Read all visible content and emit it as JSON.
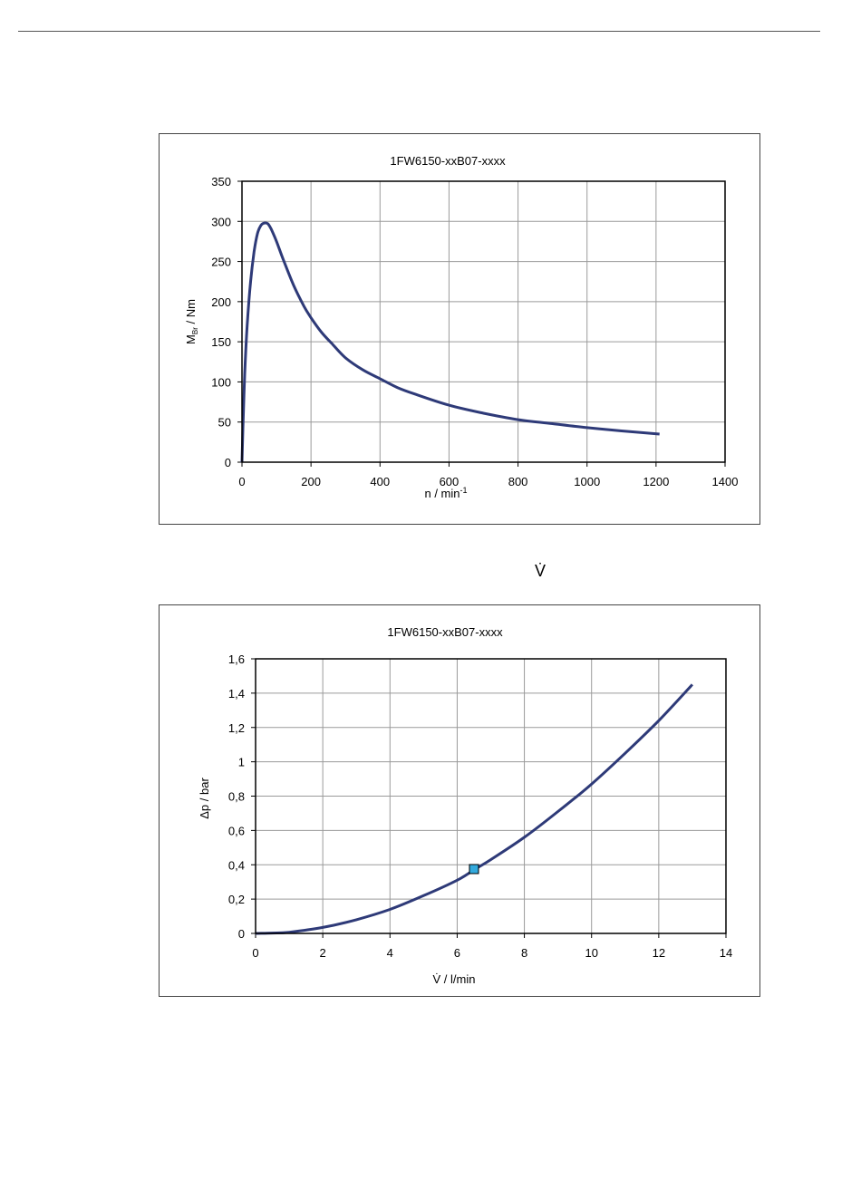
{
  "page": {
    "separator_symbol": "V̇"
  },
  "colors": {
    "curve": "#2E3A78",
    "marker_fill": "#33AADD",
    "grid": "#9a9a9a"
  },
  "chart_data": [
    {
      "type": "line",
      "title": "1FW6150-xxB07-xxxx",
      "xlabel_main": "n / min",
      "xlabel_sup": "-1",
      "ylabel_main": "M",
      "ylabel_sub": "Br",
      "ylabel_rest": " / Nm",
      "xlim": [
        0,
        1400
      ],
      "ylim": [
        0,
        350
      ],
      "xticks": [
        "0",
        "200",
        "400",
        "600",
        "800",
        "1000",
        "1200",
        "1400"
      ],
      "yticks": [
        "0",
        "50",
        "100",
        "150",
        "200",
        "250",
        "300",
        "350"
      ],
      "grid": true,
      "series": [
        {
          "x": [
            0,
            3,
            8,
            15,
            25,
            35,
            45,
            55,
            65,
            75,
            85,
            100,
            120,
            150,
            180,
            200,
            230,
            260,
            300,
            350,
            400,
            450,
            500,
            600,
            700,
            800,
            900,
            1000,
            1100,
            1210
          ],
          "y": [
            0,
            45,
            110,
            170,
            225,
            262,
            285,
            295,
            298,
            297,
            290,
            275,
            252,
            220,
            194,
            180,
            162,
            148,
            130,
            115,
            104,
            93,
            85,
            71,
            61,
            53,
            48,
            43,
            39,
            35
          ]
        }
      ]
    },
    {
      "type": "line",
      "title": "1FW6150-xxB07-xxxx",
      "xlabel": "V̇ / l/min",
      "ylabel": "Δp / bar",
      "xlim": [
        0,
        14
      ],
      "ylim": [
        0,
        1.6
      ],
      "xticks": [
        "0",
        "2",
        "4",
        "6",
        "8",
        "10",
        "12",
        "14"
      ],
      "yticks": [
        "0",
        "0,2",
        "0,4",
        "0,6",
        "0,8",
        "1",
        "1,2",
        "1,4",
        "1,6"
      ],
      "grid": true,
      "series": [
        {
          "x": [
            0,
            0.5,
            1,
            2,
            3,
            4,
            5,
            6,
            6.5,
            7,
            8,
            9,
            10,
            11,
            12,
            13
          ],
          "y": [
            0,
            0.002,
            0.007,
            0.035,
            0.08,
            0.14,
            0.22,
            0.31,
            0.37,
            0.43,
            0.56,
            0.71,
            0.87,
            1.05,
            1.24,
            1.45
          ]
        }
      ],
      "marker_point": {
        "x": 6.5,
        "y": 0.375
      }
    }
  ]
}
